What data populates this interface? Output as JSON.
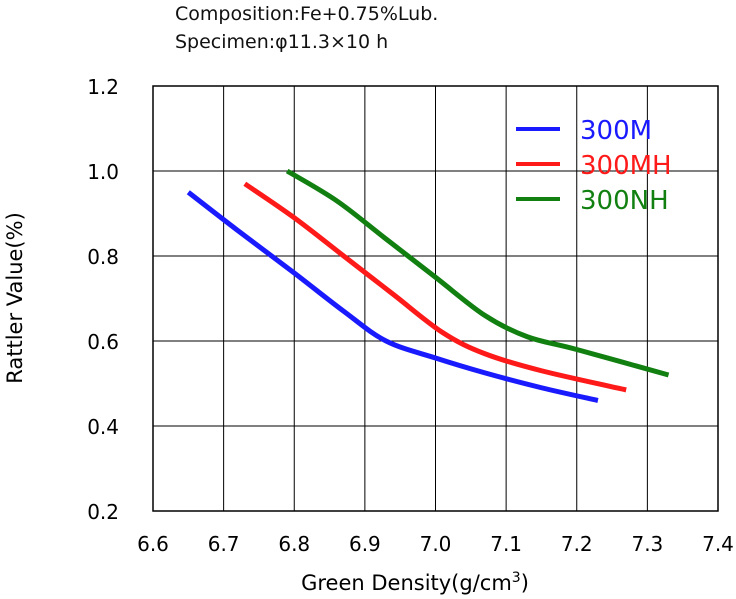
{
  "header": {
    "line1": "Composition:Fe+0.75%Lub.",
    "line2": "Specimen:φ11.3×10 h"
  },
  "chart_data": {
    "type": "line",
    "xlabel": "Green Density(g/cm",
    "xlabel_sup": "3",
    "xlabel_end": ")",
    "ylabel": "Rattler Value(%)",
    "xlim": [
      6.6,
      7.4
    ],
    "ylim": [
      0.2,
      1.2
    ],
    "x_ticks": [
      "6.6",
      "6.7",
      "6.8",
      "6.9",
      "7.0",
      "7.1",
      "7.2",
      "7.3",
      "7.4"
    ],
    "y_ticks": [
      "0.2",
      "0.4",
      "0.6",
      "0.8",
      "1.0",
      "1.2"
    ],
    "grid": true,
    "legend_position": "top-right",
    "series": [
      {
        "name": "300M",
        "color": "#1a1aff",
        "x": [
          6.65,
          6.72,
          6.8,
          6.87,
          6.93,
          7.0,
          7.07,
          7.15,
          7.23
        ],
        "y": [
          0.95,
          0.86,
          0.76,
          0.67,
          0.6,
          0.56,
          0.525,
          0.49,
          0.46
        ]
      },
      {
        "name": "300MH",
        "color": "#ff1a1a",
        "x": [
          6.73,
          6.8,
          6.87,
          6.94,
          7.01,
          7.07,
          7.15,
          7.27
        ],
        "y": [
          0.97,
          0.89,
          0.8,
          0.71,
          0.62,
          0.57,
          0.53,
          0.485
        ]
      },
      {
        "name": "300NH",
        "color": "#118011",
        "x": [
          6.79,
          6.86,
          6.93,
          7.0,
          7.07,
          7.13,
          7.2,
          7.33
        ],
        "y": [
          1.0,
          0.93,
          0.84,
          0.75,
          0.66,
          0.61,
          0.58,
          0.52
        ]
      }
    ]
  }
}
